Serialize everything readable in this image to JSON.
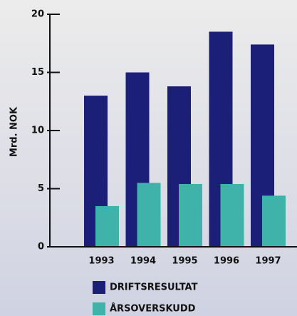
{
  "chart_data": {
    "type": "bar",
    "y_label": "Mrd. NOK",
    "categories": [
      "1993",
      "1994",
      "1995",
      "1996",
      "1997"
    ],
    "series": [
      {
        "name": "DRIFTSRESULTAT",
        "color": "#1b1f78",
        "values": [
          13.0,
          15.0,
          13.8,
          18.5,
          17.4
        ]
      },
      {
        "name": "ÅRSOVERSKUDD",
        "color": "#3fb3aa",
        "values": [
          3.5,
          5.5,
          5.4,
          5.4,
          4.4
        ]
      }
    ],
    "ylim": [
      0,
      20
    ],
    "yticks": [
      0,
      5,
      10,
      15,
      20
    ]
  }
}
